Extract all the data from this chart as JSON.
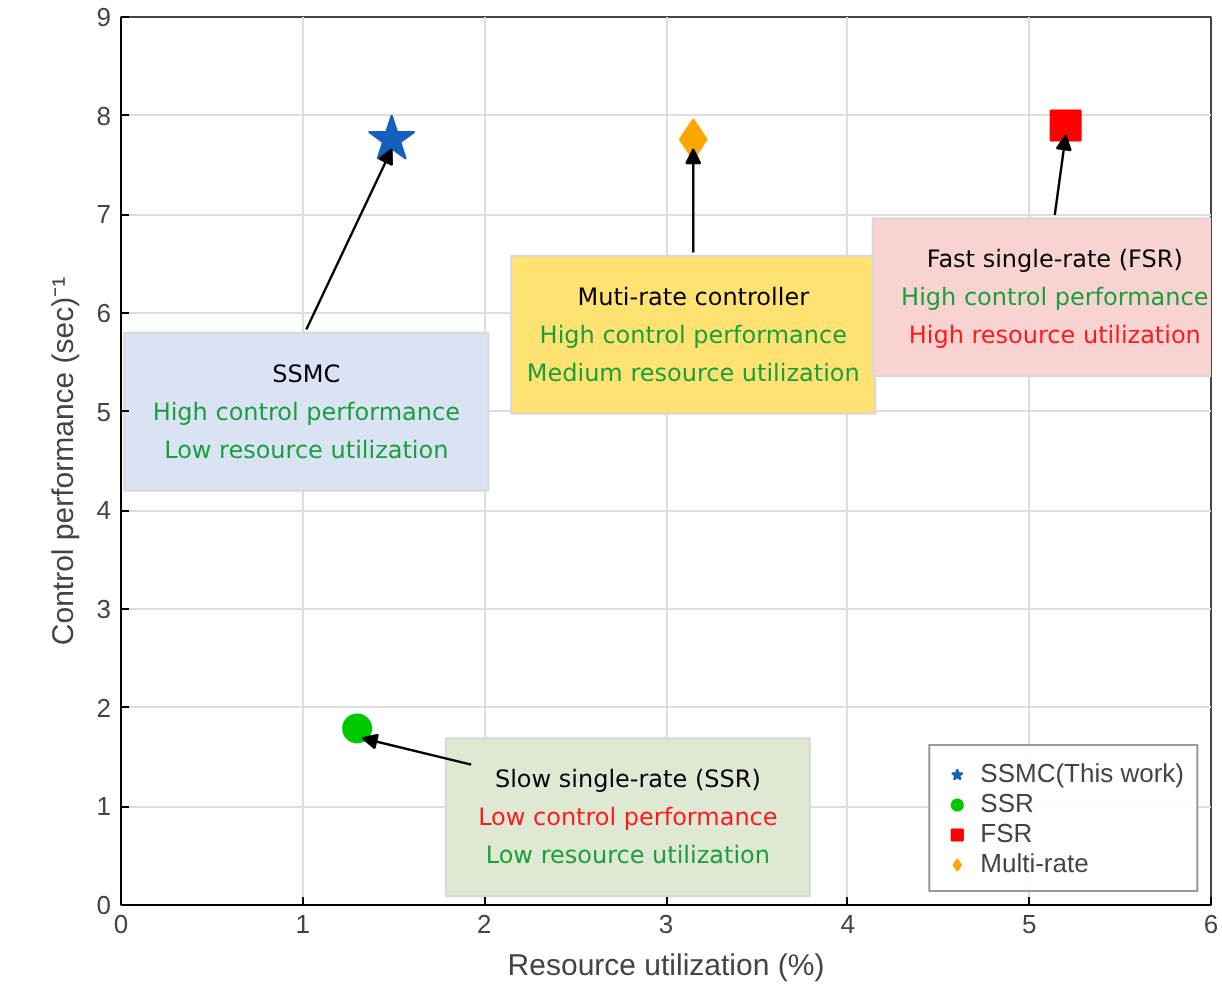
{
  "chart_data": {
    "type": "scatter",
    "xlabel": "Resource utilization (%)",
    "ylabel": "Control performance (sec)⁻¹",
    "xlim": [
      0,
      6
    ],
    "ylim": [
      0,
      9
    ],
    "xticks": [
      0,
      1,
      2,
      3,
      4,
      5,
      6
    ],
    "yticks": [
      0,
      1,
      2,
      3,
      4,
      5,
      6,
      7,
      8,
      9
    ],
    "grid": true,
    "legend": "bottom right",
    "series": [
      {
        "name": "SSMC(This work)",
        "color": "#1560bd",
        "marker": "star",
        "x": [
          1.49
        ],
        "values": [
          7.76
        ]
      },
      {
        "name": "SSR",
        "color": "#00c800",
        "marker": "circle",
        "x": [
          1.3
        ],
        "values": [
          1.79
        ]
      },
      {
        "name": "FSR",
        "color": "#ff0000",
        "marker": "square",
        "x": [
          5.2
        ],
        "values": [
          7.9
        ]
      },
      {
        "name": "Multi-rate",
        "color": "#ffa500",
        "marker": "diamond",
        "x": [
          3.15
        ],
        "values": [
          7.76
        ]
      }
    ],
    "annotations": [
      {
        "text": "SSMC\nHigh control performance\nLow resource utilization",
        "x": 1.49,
        "y": 7.76
      },
      {
        "text": "Muti-rate controller\nHigh control performance\nMedium resource utilization",
        "x": 3.15,
        "y": 7.76
      },
      {
        "text": "Fast single-rate (FSR)\nHigh control performance\nHigh resource utilization",
        "x": 5.2,
        "y": 7.9
      },
      {
        "text": "Slow single-rate (SSR)\nLow control performance\nLow resource utilization",
        "x": 1.3,
        "y": 1.79
      }
    ]
  }
}
